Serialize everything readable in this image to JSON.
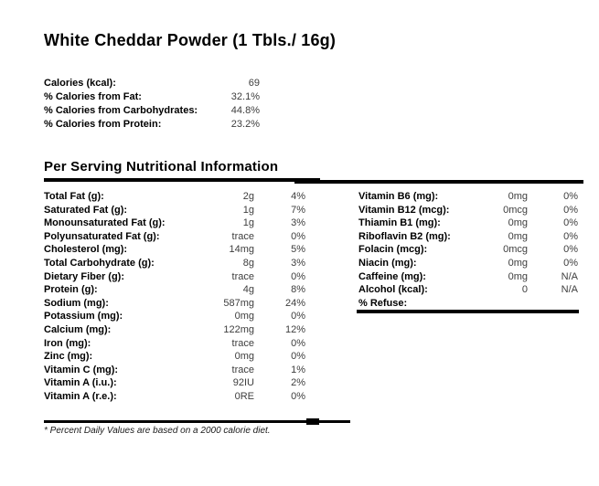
{
  "page": {
    "title": "White Cheddar Powder (1 Tbls./ 16g)",
    "section_header": "Per Serving Nutritional Information",
    "footnote": "* Percent Daily Values are based on a 2000 calorie diet."
  },
  "colors": {
    "background": "#ffffff",
    "label_text": "#000000",
    "value_text": "#3d3d3d",
    "divider_bar": "#000000"
  },
  "summary": {
    "rows": [
      {
        "label": "Calories (kcal):",
        "value": "69"
      },
      {
        "label": "% Calories from Fat:",
        "value": "32.1%"
      },
      {
        "label": "% Calories from Carbohydrates:",
        "value": "44.8%"
      },
      {
        "label": "% Calories from Protein:",
        "value": "23.2%"
      }
    ]
  },
  "nutrition": {
    "left_column": [
      {
        "label": "Total Fat (g):",
        "value": "2g",
        "dv": "4%"
      },
      {
        "label": "Saturated Fat (g):",
        "value": "1g",
        "dv": "7%"
      },
      {
        "label": "Monounsaturated Fat (g):",
        "value": "1g",
        "dv": "3%"
      },
      {
        "label": "Polyunsaturated Fat (g):",
        "value": "trace",
        "dv": "0%"
      },
      {
        "label": "Cholesterol (mg):",
        "value": "14mg",
        "dv": "5%"
      },
      {
        "label": "Total Carbohydrate (g):",
        "value": "8g",
        "dv": "3%"
      },
      {
        "label": "Dietary Fiber (g):",
        "value": "trace",
        "dv": "0%"
      },
      {
        "label": "Protein (g):",
        "value": "4g",
        "dv": "8%"
      },
      {
        "label": "Sodium (mg):",
        "value": "587mg",
        "dv": "24%"
      },
      {
        "label": "Potassium (mg):",
        "value": "0mg",
        "dv": "0%"
      },
      {
        "label": "Calcium (mg):",
        "value": "122mg",
        "dv": "12%"
      },
      {
        "label": "Iron (mg):",
        "value": "trace",
        "dv": "0%"
      },
      {
        "label": "Zinc (mg):",
        "value": "0mg",
        "dv": "0%"
      },
      {
        "label": "Vitamin C (mg):",
        "value": "trace",
        "dv": "1%"
      },
      {
        "label": "Vitamin A (i.u.):",
        "value": "92IU",
        "dv": "2%"
      },
      {
        "label": "Vitamin A (r.e.):",
        "value": "0RE",
        "dv": "0%"
      }
    ],
    "right_column": [
      {
        "label": "Vitamin B6 (mg):",
        "value": "0mg",
        "dv": "0%"
      },
      {
        "label": "Vitamin B12 (mcg):",
        "value": "0mcg",
        "dv": "0%"
      },
      {
        "label": "Thiamin B1 (mg):",
        "value": "0mg",
        "dv": "0%"
      },
      {
        "label": "Riboflavin B2 (mg):",
        "value": "0mg",
        "dv": "0%"
      },
      {
        "label": "Folacin (mcg):",
        "value": "0mcg",
        "dv": "0%"
      },
      {
        "label": "Niacin (mg):",
        "value": "0mg",
        "dv": "0%"
      },
      {
        "label": "Caffeine (mg):",
        "value": "0mg",
        "dv": "N/A"
      },
      {
        "label": "Alcohol (kcal):",
        "value": "0",
        "dv": "N/A"
      },
      {
        "label": "% Refuse:",
        "value": "",
        "dv": ""
      }
    ]
  }
}
